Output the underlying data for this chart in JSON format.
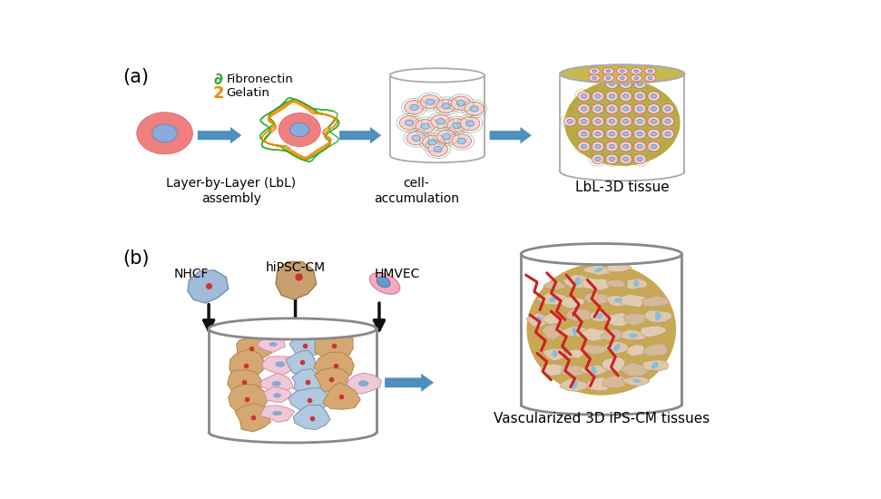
{
  "panel_a_label": "(a)",
  "panel_b_label": "(b)",
  "fibronectin_label": "Fibronectin",
  "gelatin_label": "Gelatin",
  "fibronectin_color": "#22aa22",
  "gelatin_color": "#ee8800",
  "cell_pink": "#f08080",
  "cell_blue": "#6699cc",
  "arrow_color": "#4d8fbd",
  "lbl_label": "Layer-by-Layer (LbL)\nassembly",
  "accum_label": "cell-\naccumulation",
  "tissue_label": "LbL-3D tissue",
  "nhcf_label": "NHCF",
  "hipsc_label": "hiPSC-CM",
  "hmvec_label": "HMVEC",
  "vasc_label": "Vascularized 3D iPS-CM tissues",
  "black_arrow": "#111111",
  "red_vessel": "#cc2222",
  "fibroblast_tan": "#d4a878",
  "fibroblast_outline": "#c49060",
  "background": "#ffffff",
  "tissue_bg_a": "#b8b050",
  "tissue_bg_b": "#c8a855",
  "cell_coat_color": "#88aa66",
  "edge_color": "#888888"
}
